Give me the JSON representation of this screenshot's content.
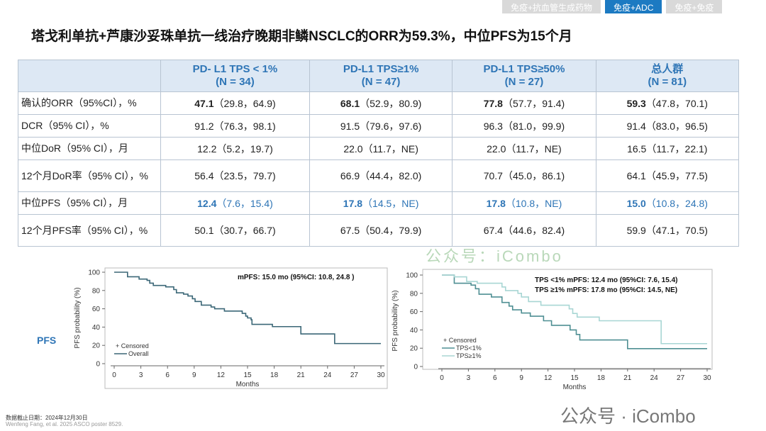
{
  "tabs": [
    {
      "label": "免疫+抗血管生成药物",
      "active": false
    },
    {
      "label": "免疫+ADC",
      "active": true
    },
    {
      "label": "免疫+免疫",
      "active": false
    }
  ],
  "title": "塔戈利单抗+芦康沙妥珠单抗一线治疗晚期非鳞NSCLC的ORR为59.3%，中位PFS为15个月",
  "table": {
    "headers": [
      [
        "PD- L1  TPS < 1%",
        "(N = 34)"
      ],
      [
        "PD-L1 TPS≥1%",
        "(N = 47)"
      ],
      [
        "PD-L1 TPS≥50%",
        "(N = 27)"
      ],
      [
        "总人群",
        "(N = 81)"
      ]
    ],
    "rows": [
      {
        "label": "确认的ORR（95%CI），%",
        "cells": [
          [
            "47.1",
            "（29.8，64.9)"
          ],
          [
            "68.1",
            "（52.9，80.9)"
          ],
          [
            "77.8",
            "（57.7，91.4)"
          ],
          [
            "59.3",
            "（47.8，70.1)"
          ]
        ],
        "bold": true
      },
      {
        "label": "DCR（95% CI），%",
        "cells": [
          [
            "91.2",
            "（76.3，98.1)"
          ],
          [
            "91.5",
            "（79.6，97.6)"
          ],
          [
            "96.3",
            "（81.0，99.9)"
          ],
          [
            "91.4",
            "（83.0，96.5)"
          ]
        ]
      },
      {
        "label": "中位DoR（95% CI），月",
        "cells": [
          [
            "12.2",
            "（5.2，19.7)"
          ],
          [
            "22.0",
            "（11.7，NE)"
          ],
          [
            "22.0",
            "（11.7，NE)"
          ],
          [
            "16.5",
            "（11.7，22.1)"
          ]
        ]
      },
      {
        "label": "12个月DoR率（95% CI），%",
        "cells": [
          [
            "56.4",
            "（23.5，79.7)"
          ],
          [
            "66.9",
            "（44.4，82.0)"
          ],
          [
            "70.7",
            "（45.0，86.1)"
          ],
          [
            "64.1",
            "（45.9，77.5)"
          ]
        ],
        "tall": true
      },
      {
        "label": "中位PFS（95% CI），月",
        "cells": [
          [
            "12.4",
            "（7.6，15.4)"
          ],
          [
            "17.8",
            "（14.5，NE)"
          ],
          [
            "17.8",
            "（10.8，NE)"
          ],
          [
            "15.0",
            "（10.8，24.8)"
          ]
        ],
        "bold": true,
        "blue": true
      },
      {
        "label": "12个月PFS率（95% CI），%",
        "cells": [
          [
            "50.1",
            "（30.7，66.7)"
          ],
          [
            "67.5",
            "（50.4，79.9)"
          ],
          [
            "67.4",
            "（44.6，82.4)"
          ],
          [
            "59.9",
            "（47.1，70.5)"
          ]
        ],
        "tall": true
      }
    ]
  },
  "pfs_label": "PFS",
  "chart_data": [
    {
      "type": "line",
      "xlabel": "Months",
      "ylabel": "PFS probability (%)",
      "xlim": [
        0,
        30
      ],
      "ylim": [
        0,
        100
      ],
      "xticks": [
        0,
        3,
        6,
        9,
        12,
        15,
        18,
        21,
        24,
        27,
        30
      ],
      "yticks": [
        0,
        20,
        40,
        60,
        80,
        100
      ],
      "annotations": [
        "mPFS: 15.0 mo (95%CI: 10.8, 24.8 )"
      ],
      "legend_title": "+ Censored",
      "legend": "bottom-left",
      "series": [
        {
          "name": "Overall",
          "color": "#3b6777",
          "points": [
            [
              0,
              100
            ],
            [
              1.5,
              95
            ],
            [
              2.8,
              92.5
            ],
            [
              3.7,
              91
            ],
            [
              4,
              88
            ],
            [
              4.4,
              85.5
            ],
            [
              5.8,
              84
            ],
            [
              6.7,
              81
            ],
            [
              7,
              77.5
            ],
            [
              7.8,
              76
            ],
            [
              8.3,
              74
            ],
            [
              8.8,
              71
            ],
            [
              9.1,
              68
            ],
            [
              9.8,
              64
            ],
            [
              10.9,
              62
            ],
            [
              11.3,
              60
            ],
            [
              12.4,
              57.5
            ],
            [
              14.4,
              55
            ],
            [
              14.8,
              52
            ],
            [
              15,
              50
            ],
            [
              15.4,
              48
            ],
            [
              15.5,
              43
            ],
            [
              17.8,
              40.5
            ],
            [
              21,
              32.5
            ],
            [
              24.8,
              22
            ],
            [
              30,
              22
            ]
          ]
        }
      ]
    },
    {
      "type": "line",
      "xlabel": "Months",
      "ylabel": "PFS probability (%)",
      "xlim": [
        0,
        30
      ],
      "ylim": [
        0,
        100
      ],
      "xticks": [
        0,
        3,
        6,
        9,
        12,
        15,
        18,
        21,
        24,
        27,
        30
      ],
      "yticks": [
        0,
        20,
        40,
        60,
        80,
        100
      ],
      "annotations": [
        "TPS <1% mPFS: 12.4 mo (95%CI: 7.6, 15.4)",
        "TPS ≥1% mPFS: 17.8 mo (95%CI: 14.5, NE)"
      ],
      "legend_title": "+ Censored",
      "legend": "bottom-left",
      "series": [
        {
          "name": "TPS<1%",
          "color": "#4f8f93",
          "points": [
            [
              0,
              100
            ],
            [
              1.4,
              91
            ],
            [
              3.3,
              89
            ],
            [
              3.8,
              85
            ],
            [
              4.2,
              79
            ],
            [
              5.6,
              76
            ],
            [
              6.8,
              70
            ],
            [
              7.6,
              66
            ],
            [
              8,
              62
            ],
            [
              9,
              58.5
            ],
            [
              10,
              55
            ],
            [
              11.5,
              50
            ],
            [
              12.4,
              45
            ],
            [
              14.5,
              40
            ],
            [
              15.2,
              35
            ],
            [
              15.6,
              29
            ],
            [
              21,
              19.5
            ],
            [
              30,
              19.5
            ]
          ]
        },
        {
          "name": "TPS≥1%",
          "color": "#a8d6d4",
          "points": [
            [
              0,
              100
            ],
            [
              1.4,
              98
            ],
            [
              2.8,
              93
            ],
            [
              4,
              91
            ],
            [
              6.8,
              87
            ],
            [
              7.2,
              83
            ],
            [
              8.6,
              80
            ],
            [
              9,
              76
            ],
            [
              9.8,
              71
            ],
            [
              11.2,
              67
            ],
            [
              14.4,
              63
            ],
            [
              14.8,
              58
            ],
            [
              15.3,
              54
            ],
            [
              17.8,
              50
            ],
            [
              24.8,
              25
            ],
            [
              30,
              25
            ]
          ]
        }
      ]
    }
  ],
  "footer": {
    "cutoff": "数据截止日期：2024年12月30日",
    "source": "Wenfeng Fang, et al. 2025 ASCO poster 8529."
  },
  "watermark": "公众号：iCombo",
  "watermark_logo": "公众号 · iCombo"
}
